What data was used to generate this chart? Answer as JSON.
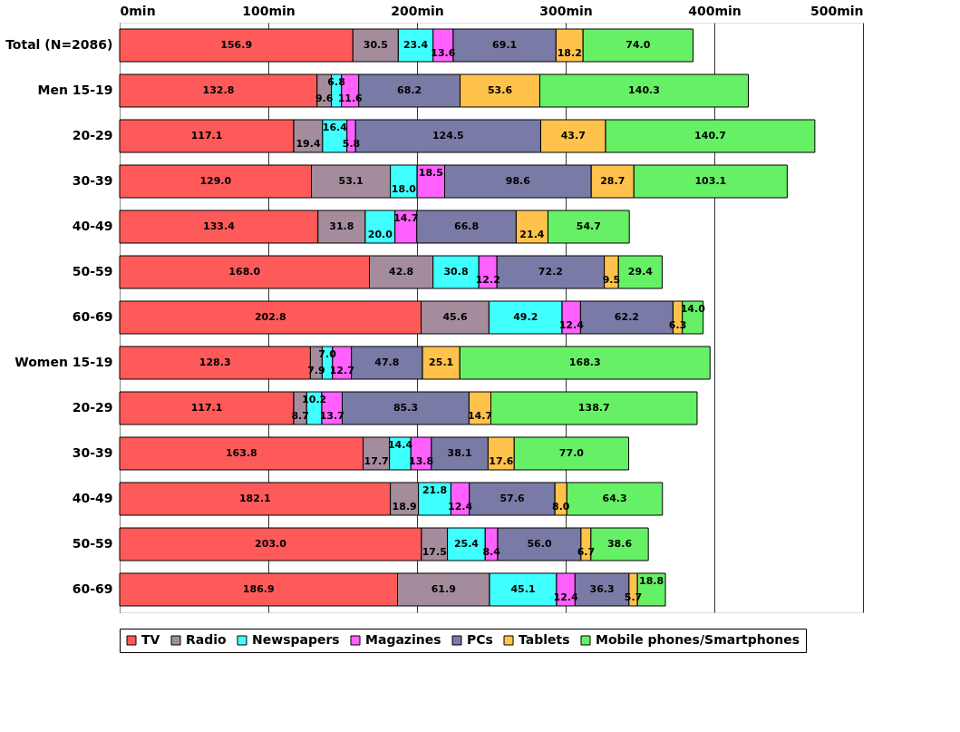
{
  "chart_data": {
    "type": "bar",
    "orientation": "horizontal",
    "stacked": true,
    "grid": "x",
    "legend": "bottom",
    "categories": [
      "Total (N=2086)",
      "Men 15-19",
      "20-29",
      "30-39",
      "40-49",
      "50-59",
      "60-69",
      "Women 15-19",
      "20-29",
      "30-39",
      "40-49",
      "50-59",
      "60-69"
    ],
    "xlim": [
      0,
      500
    ],
    "xticks": [
      {
        "value": 0,
        "label": "0min"
      },
      {
        "value": 100,
        "label": "100min"
      },
      {
        "value": 200,
        "label": "200min"
      },
      {
        "value": 300,
        "label": "300min"
      },
      {
        "value": 400,
        "label": "400min"
      },
      {
        "value": 500,
        "label": "500min"
      }
    ],
    "series": [
      {
        "name": "TV",
        "color": "#ff5a5a",
        "values": [
          156.9,
          132.8,
          117.1,
          129.0,
          133.4,
          168.0,
          202.8,
          128.3,
          117.1,
          163.8,
          182.1,
          203.0,
          186.9
        ],
        "value_labels": [
          "156.9",
          "132.8",
          "117.1",
          "129.0",
          "133.4",
          "168.0",
          "202.8",
          "128.3",
          "117.1",
          "163.8",
          "182.1",
          "203.0",
          "186.9"
        ]
      },
      {
        "name": "Radio",
        "color": "#a58c9c",
        "values": [
          30.5,
          9.6,
          19.4,
          53.1,
          31.8,
          42.8,
          45.6,
          7.9,
          8.7,
          17.7,
          18.9,
          17.5,
          61.9
        ],
        "value_labels": [
          "30.5",
          "9.6",
          "19.4",
          "53.1",
          "31.8",
          "42.8",
          "45.6",
          "7.9",
          "8.7",
          "17.7",
          "18.9",
          "17.5",
          "61.9"
        ]
      },
      {
        "name": "Newspapers",
        "color": "#40ffff",
        "values": [
          23.4,
          6.8,
          16.4,
          18.0,
          20.0,
          30.8,
          49.2,
          7.0,
          10.2,
          14.4,
          21.8,
          25.4,
          45.1
        ],
        "value_labels": [
          "23.4",
          "6.8",
          "16.4",
          "18.0",
          "20.0",
          "30.8",
          "49.2",
          "7.0",
          "10.2",
          "14.4",
          "21.8",
          "25.4",
          "45.1"
        ]
      },
      {
        "name": "Magazines",
        "color": "#ff60ff",
        "values": [
          13.6,
          11.6,
          5.8,
          18.5,
          14.7,
          12.2,
          12.4,
          12.7,
          13.7,
          13.8,
          12.4,
          8.4,
          12.4
        ],
        "value_labels": [
          "13.6",
          "11.6",
          "5.8",
          "18.5",
          "14.7",
          "12.2",
          "12.4",
          "12.7",
          "13.7",
          "13.8",
          "12.4",
          "8.4",
          "12.4"
        ]
      },
      {
        "name": "PCs",
        "color": "#7a7aa6",
        "values": [
          69.1,
          68.2,
          124.5,
          98.6,
          66.8,
          72.2,
          62.2,
          47.8,
          85.3,
          38.1,
          57.6,
          56.0,
          36.3
        ],
        "value_labels": [
          "69.1",
          "68.2",
          "124.5",
          "98.6",
          "66.8",
          "72.2",
          "62.2",
          "47.8",
          "85.3",
          "38.1",
          "57.6",
          "56.0",
          "36.3"
        ]
      },
      {
        "name": "Tablets",
        "color": "#ffc24a",
        "values": [
          18.2,
          53.6,
          43.7,
          28.7,
          21.4,
          9.5,
          6.3,
          25.1,
          14.7,
          17.6,
          8.0,
          6.7,
          5.7
        ],
        "value_labels": [
          "18.2",
          "53.6",
          "43.7",
          "28.7",
          "21.4",
          "9.5",
          "6.3",
          "25.1",
          "14.7",
          "17.6",
          "8.0",
          "6.7",
          "5.7"
        ]
      },
      {
        "name": "Mobile phones/Smartphones",
        "color": "#66f066",
        "values": [
          74.0,
          140.3,
          140.7,
          103.1,
          54.7,
          29.4,
          14.0,
          168.3,
          138.7,
          77.0,
          64.3,
          38.6,
          18.8
        ],
        "value_labels": [
          "74.0",
          "140.3",
          "140.7",
          "103.1",
          "54.7",
          "29.4",
          "14.0",
          "168.3",
          "138.7",
          "77.0",
          "64.3",
          "38.6",
          "18.8"
        ]
      }
    ]
  }
}
